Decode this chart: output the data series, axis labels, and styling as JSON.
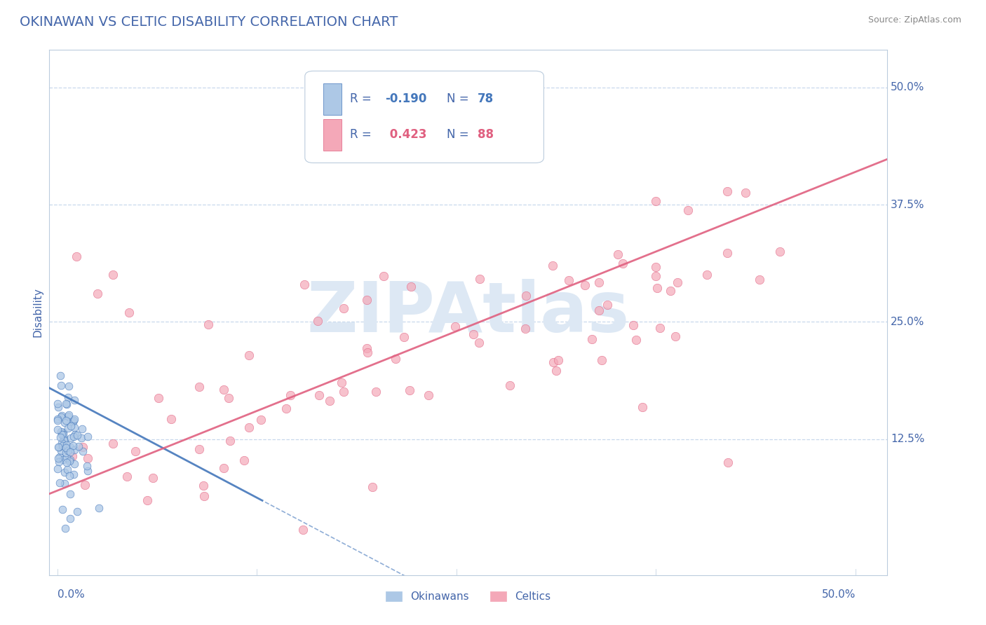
{
  "title": "OKINAWAN VS CELTIC DISABILITY CORRELATION CHART",
  "source": "Source: ZipAtlas.com",
  "ylabel": "Disability",
  "yticks": [
    "50.0%",
    "37.5%",
    "25.0%",
    "12.5%"
  ],
  "ytick_vals": [
    0.5,
    0.375,
    0.25,
    0.125
  ],
  "xlim": [
    -0.005,
    0.52
  ],
  "ylim": [
    -0.02,
    0.54
  ],
  "okinawan_R": -0.19,
  "okinawan_N": 78,
  "celtic_R": 0.423,
  "celtic_N": 88,
  "okinawan_color": "#adc8e6",
  "celtic_color": "#f4a8b8",
  "okinawan_line_color": "#4477bb",
  "celtic_line_color": "#e06080",
  "axis_color": "#4466aa",
  "grid_color": "#c8d8ec",
  "watermark_color": "#dde8f4",
  "background_color": "#ffffff",
  "seed": 12345
}
